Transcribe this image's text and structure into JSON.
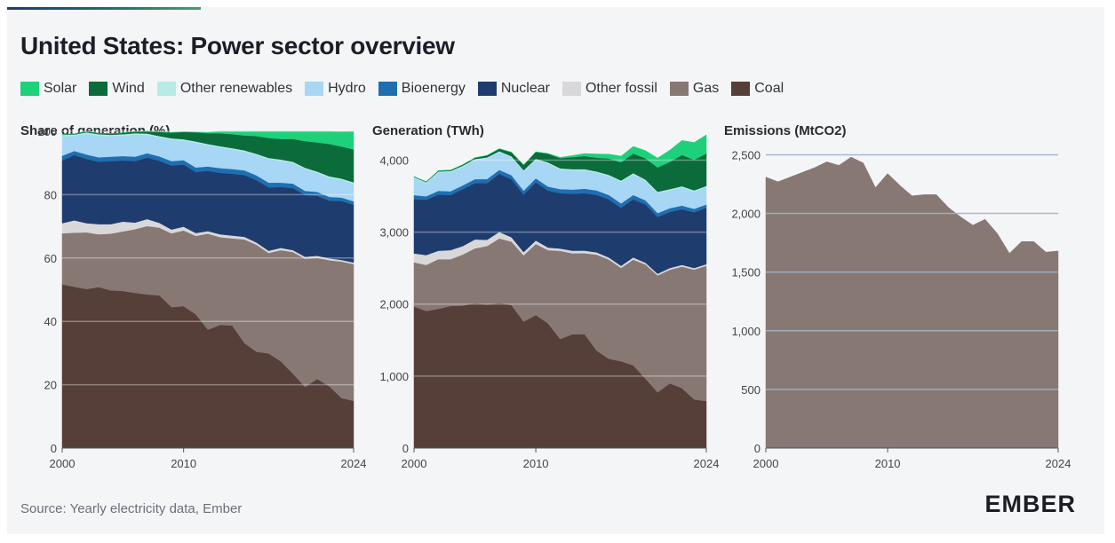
{
  "header": {
    "title": "United States: Power sector overview"
  },
  "legend": [
    {
      "name": "Solar",
      "color": "#1fd07a"
    },
    {
      "name": "Wind",
      "color": "#0c6b3a"
    },
    {
      "name": "Other renewables",
      "color": "#b7ebe6"
    },
    {
      "name": "Hydro",
      "color": "#a8d6f5"
    },
    {
      "name": "Bioenergy",
      "color": "#1f6fb0"
    },
    {
      "name": "Nuclear",
      "color": "#1f3c6e"
    },
    {
      "name": "Other fossil",
      "color": "#d8d8da"
    },
    {
      "name": "Gas",
      "color": "#877874"
    },
    {
      "name": "Coal",
      "color": "#563e39"
    }
  ],
  "panels": {
    "share_title": "Share of generation (%)",
    "generation_title": "Generation (TWh)",
    "emissions_title": "Emissions (MtCO2)"
  },
  "footer": {
    "source": "Source: Yearly electricity data, Ember",
    "logo": "EMBER"
  },
  "chart_data": [
    {
      "type": "area",
      "stacked": true,
      "title": "Share of generation (%)",
      "ylim": [
        0,
        100
      ],
      "yticks": [
        0,
        20,
        40,
        60,
        80,
        100
      ],
      "xticks": [
        2000,
        2010,
        2024
      ],
      "x": [
        2000,
        2001,
        2002,
        2003,
        2004,
        2005,
        2006,
        2007,
        2008,
        2009,
        2010,
        2011,
        2012,
        2013,
        2014,
        2015,
        2016,
        2017,
        2018,
        2019,
        2020,
        2021,
        2022,
        2023,
        2024
      ],
      "series": [
        {
          "name": "Coal",
          "color": "#563e39",
          "values": [
            51.7,
            50.9,
            50.2,
            50.8,
            49.8,
            49.6,
            49.0,
            48.5,
            48.2,
            44.5,
            44.8,
            42.2,
            37.4,
            38.9,
            38.7,
            33.2,
            30.4,
            29.9,
            27.4,
            23.5,
            19.3,
            21.8,
            19.5,
            15.8,
            14.9
          ]
        },
        {
          "name": "Gas",
          "color": "#877874",
          "values": [
            16.1,
            17.1,
            17.9,
            16.7,
            17.9,
            18.8,
            20.1,
            21.6,
            21.4,
            23.3,
            23.9,
            24.8,
            30.3,
            27.7,
            27.5,
            32.7,
            33.8,
            31.7,
            35.1,
            38.4,
            40.5,
            38.3,
            39.8,
            43.1,
            43.2
          ]
        },
        {
          "name": "Other fossil",
          "color": "#d8d8da",
          "values": [
            3.2,
            3.9,
            2.9,
            3.2,
            3.0,
            3.1,
            2.1,
            2.2,
            1.5,
            1.2,
            1.2,
            0.9,
            0.8,
            0.9,
            0.9,
            0.8,
            0.7,
            0.7,
            0.7,
            0.6,
            0.6,
            0.6,
            0.6,
            0.5,
            0.5
          ]
        },
        {
          "name": "Nuclear",
          "color": "#1f3c6e",
          "values": [
            19.8,
            20.6,
            20.3,
            19.7,
            19.9,
            19.3,
            19.4,
            19.4,
            19.6,
            20.2,
            19.6,
            19.3,
            19.0,
            19.4,
            19.5,
            19.5,
            19.7,
            20.0,
            19.2,
            19.6,
            19.5,
            18.9,
            18.2,
            18.6,
            18.2
          ]
        },
        {
          "name": "Bioenergy",
          "color": "#1f6fb0",
          "values": [
            1.5,
            1.3,
            1.4,
            1.4,
            1.4,
            1.4,
            1.4,
            1.4,
            1.4,
            1.4,
            1.4,
            1.4,
            1.4,
            1.5,
            1.5,
            1.5,
            1.5,
            1.5,
            1.4,
            1.4,
            1.3,
            1.3,
            1.2,
            1.1,
            1.1
          ]
        },
        {
          "name": "Hydro",
          "color": "#a8d6f5",
          "values": [
            6.2,
            4.8,
            6.6,
            6.9,
            6.5,
            6.5,
            7.0,
            5.8,
            6.0,
            6.8,
            6.2,
            7.8,
            6.7,
            6.5,
            6.2,
            5.9,
            6.4,
            7.4,
            6.9,
            6.5,
            6.9,
            6.0,
            6.1,
            5.6,
            5.6
          ]
        },
        {
          "name": "Other renewables",
          "color": "#b7ebe6",
          "values": [
            0.4,
            0.4,
            0.4,
            0.4,
            0.4,
            0.4,
            0.4,
            0.4,
            0.4,
            0.4,
            0.4,
            0.4,
            0.4,
            0.4,
            0.4,
            0.4,
            0.4,
            0.4,
            0.4,
            0.4,
            0.4,
            0.4,
            0.4,
            0.4,
            0.4
          ]
        },
        {
          "name": "Wind",
          "color": "#0c6b3a",
          "values": [
            0.1,
            0.2,
            0.3,
            0.3,
            0.4,
            0.4,
            0.6,
            0.8,
            1.3,
            1.8,
            2.3,
            2.9,
            3.4,
            4.1,
            4.4,
            4.7,
            5.6,
            6.3,
            6.5,
            7.2,
            8.4,
            9.2,
            10.2,
            10.1,
            10.4
          ]
        },
        {
          "name": "Solar",
          "color": "#1fd07a",
          "values": [
            0.0,
            0.0,
            0.0,
            0.0,
            0.0,
            0.0,
            0.0,
            0.0,
            0.1,
            0.1,
            0.1,
            0.1,
            0.3,
            0.6,
            0.9,
            1.3,
            1.5,
            2.1,
            2.4,
            2.4,
            3.1,
            3.5,
            4.0,
            4.7,
            5.7
          ]
        }
      ]
    },
    {
      "type": "area",
      "stacked": true,
      "title": "Generation (TWh)",
      "ylim": [
        0,
        4400
      ],
      "yticks": [
        0,
        1000,
        2000,
        3000,
        4000
      ],
      "ytick_labels": [
        "0",
        "1,000",
        "2,000",
        "3,000",
        "4,000"
      ],
      "xticks": [
        2000,
        2010,
        2024
      ],
      "x": [
        2000,
        2001,
        2002,
        2003,
        2004,
        2005,
        2006,
        2007,
        2008,
        2009,
        2010,
        2011,
        2012,
        2013,
        2014,
        2015,
        2016,
        2017,
        2018,
        2019,
        2020,
        2021,
        2022,
        2023,
        2024
      ],
      "series": [
        {
          "name": "Coal",
          "color": "#563e39",
          "values": [
            1966,
            1904,
            1933,
            1974,
            1978,
            2013,
            1991,
            2016,
            1986,
            1756,
            1847,
            1733,
            1514,
            1581,
            1582,
            1352,
            1240,
            1206,
            1149,
            965,
            774,
            898,
            832,
            675,
            653
          ]
        },
        {
          "name": "Gas",
          "color": "#877874",
          "values": [
            615,
            640,
            691,
            650,
            710,
            761,
            816,
            896,
            883,
            921,
            988,
            1017,
            1226,
            1125,
            1125,
            1335,
            1379,
            1296,
            1469,
            1586,
            1624,
            1579,
            1689,
            1804,
            1880
          ]
        },
        {
          "name": "Other fossil",
          "color": "#d8d8da",
          "values": [
            123,
            137,
            117,
            126,
            118,
            124,
            86,
            90,
            60,
            45,
            48,
            36,
            32,
            36,
            36,
            32,
            28,
            30,
            30,
            24,
            24,
            24,
            24,
            22,
            22
          ]
        },
        {
          "name": "Nuclear",
          "color": "#1f3c6e",
          "values": [
            754,
            769,
            780,
            764,
            789,
            782,
            787,
            806,
            806,
            799,
            807,
            790,
            769,
            789,
            797,
            797,
            806,
            805,
            807,
            809,
            789,
            778,
            772,
            775,
            782
          ]
        },
        {
          "name": "Bioenergy",
          "color": "#1f6fb0",
          "values": [
            56,
            48,
            53,
            53,
            54,
            56,
            57,
            56,
            56,
            55,
            57,
            57,
            57,
            60,
            63,
            63,
            62,
            62,
            60,
            58,
            54,
            53,
            51,
            47,
            47
          ]
        },
        {
          "name": "Hydro",
          "color": "#a8d6f5",
          "values": [
            236,
            180,
            254,
            267,
            258,
            263,
            286,
            245,
            248,
            268,
            255,
            319,
            271,
            266,
            255,
            246,
            263,
            300,
            287,
            271,
            278,
            248,
            252,
            240,
            240
          ]
        },
        {
          "name": "Other renewables",
          "color": "#b7ebe6",
          "values": [
            15,
            14,
            15,
            15,
            15,
            16,
            15,
            15,
            15,
            15,
            16,
            17,
            17,
            17,
            17,
            17,
            17,
            17,
            17,
            17,
            17,
            17,
            17,
            17,
            17
          ]
        },
        {
          "name": "Wind",
          "color": "#0c6b3a",
          "values": [
            6,
            7,
            10,
            11,
            14,
            18,
            27,
            34,
            55,
            74,
            95,
            120,
            141,
            168,
            182,
            191,
            227,
            254,
            273,
            295,
            338,
            378,
            434,
            425,
            450
          ]
        },
        {
          "name": "Solar",
          "color": "#1fd07a",
          "values": [
            1,
            1,
            1,
            1,
            1,
            1,
            1,
            1,
            2,
            2,
            3,
            4,
            11,
            21,
            34,
            52,
            60,
            85,
            98,
            107,
            130,
            163,
            202,
            240,
            260
          ]
        }
      ]
    },
    {
      "type": "area",
      "title": "Emissions (MtCO2)",
      "ylim": [
        0,
        2700
      ],
      "yticks": [
        0,
        500,
        1000,
        1500,
        2000,
        2500
      ],
      "ytick_labels": [
        "0",
        "500",
        "1,000",
        "1,500",
        "2,000",
        "2,500"
      ],
      "xticks": [
        2000,
        2010,
        2024
      ],
      "x": [
        2000,
        2001,
        2002,
        2003,
        2004,
        2005,
        2006,
        2007,
        2008,
        2009,
        2010,
        2011,
        2012,
        2013,
        2014,
        2015,
        2016,
        2017,
        2018,
        2019,
        2020,
        2021,
        2022,
        2023,
        2024
      ],
      "series": [
        {
          "name": "Emissions",
          "color": "#877874",
          "values": [
            2310,
            2270,
            2310,
            2350,
            2390,
            2440,
            2410,
            2480,
            2430,
            2220,
            2340,
            2240,
            2150,
            2160,
            2160,
            2050,
            1970,
            1900,
            1950,
            1830,
            1660,
            1760,
            1760,
            1670,
            1680
          ]
        }
      ]
    }
  ]
}
